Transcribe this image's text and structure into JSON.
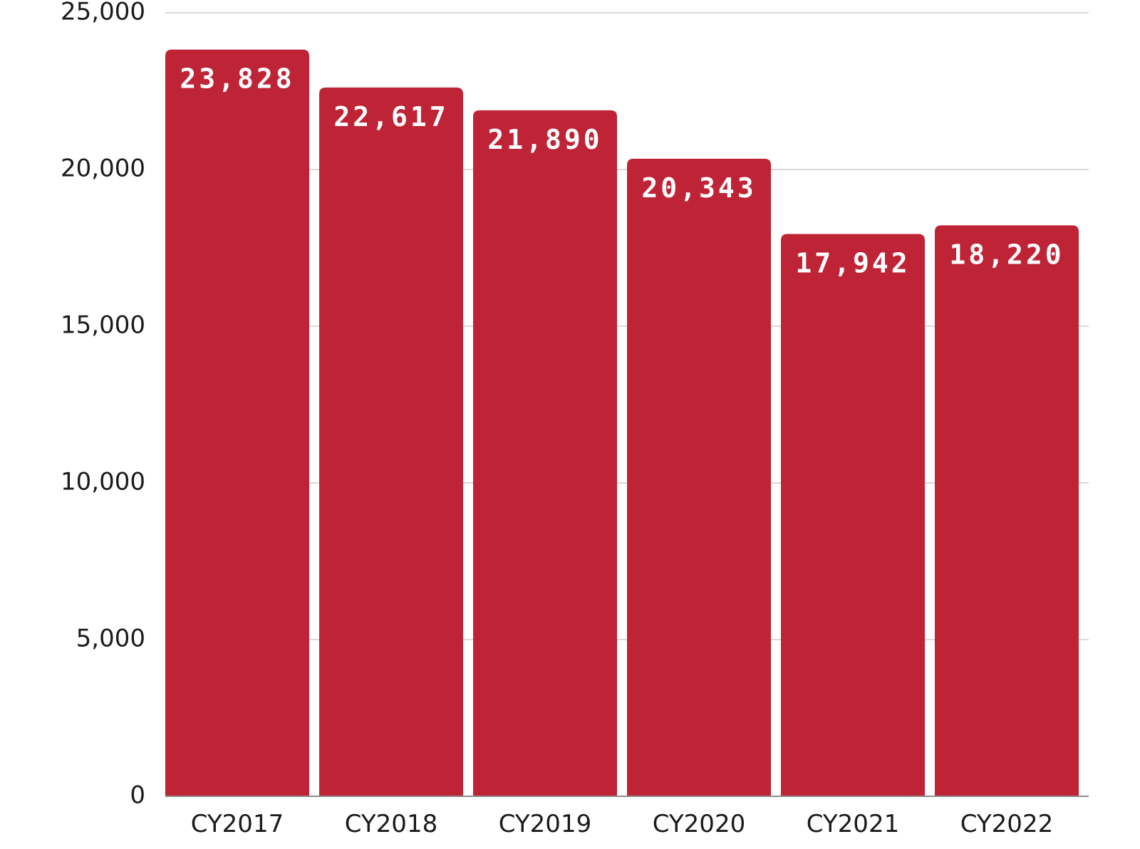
{
  "chart_data": {
    "type": "bar",
    "categories": [
      "CY2017",
      "CY2018",
      "CY2019",
      "CY2020",
      "CY2021",
      "CY2022"
    ],
    "values": [
      23828,
      22617,
      21890,
      20343,
      17942,
      18220
    ],
    "data_labels": [
      "23,828",
      "22,617",
      "21,890",
      "20,343",
      "17,942",
      "18,220"
    ],
    "title": "",
    "xlabel": "",
    "ylabel": "",
    "ylim": [
      0,
      25000
    ],
    "y_ticks": [
      0,
      5000,
      10000,
      15000,
      20000,
      25000
    ],
    "y_tick_labels": [
      "0",
      "5,000",
      "10,000",
      "15,000",
      "20,000",
      "25,000"
    ],
    "grid": true,
    "legend": "none",
    "bar_color": "#bf2336"
  }
}
